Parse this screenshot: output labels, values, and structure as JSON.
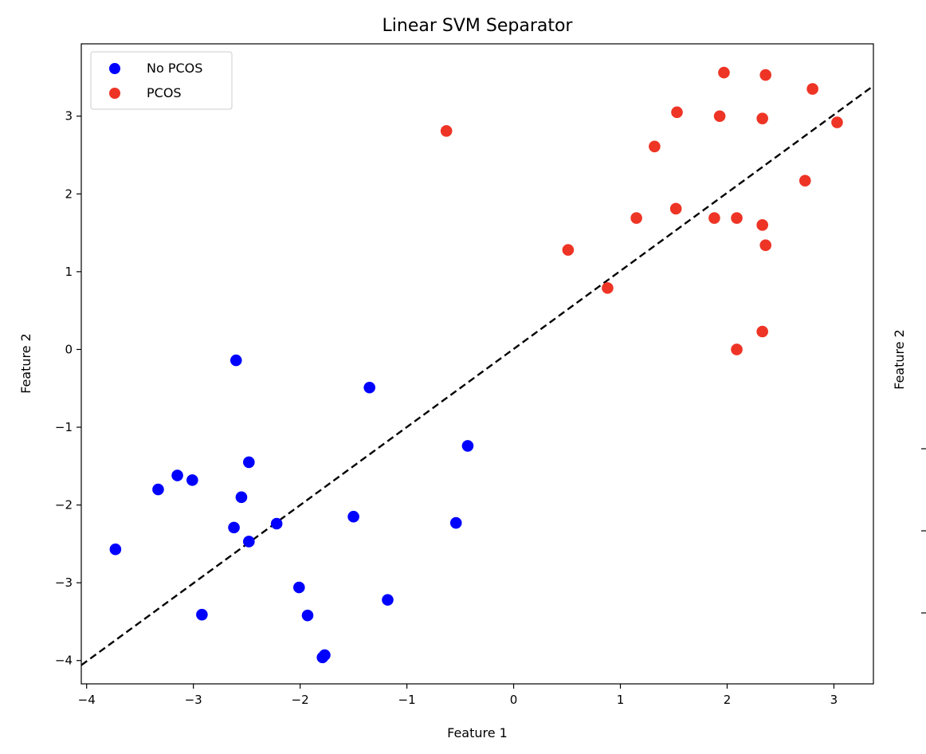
{
  "chart_data": {
    "type": "scatter",
    "title": "Linear SVM Separator",
    "xlabel": "Feature 1",
    "ylabel": "Feature 2",
    "xlim": [
      -4.05,
      3.37
    ],
    "ylim": [
      -4.3,
      3.93
    ],
    "x_ticks": [
      {
        "value": -4,
        "label": "−4"
      },
      {
        "value": -3,
        "label": "−3"
      },
      {
        "value": -2,
        "label": "−2"
      },
      {
        "value": -1,
        "label": "−1"
      },
      {
        "value": 0,
        "label": "0"
      },
      {
        "value": 1,
        "label": "1"
      },
      {
        "value": 2,
        "label": "2"
      },
      {
        "value": 3,
        "label": "3"
      }
    ],
    "y_ticks": [
      {
        "value": -4,
        "label": "−4"
      },
      {
        "value": -3,
        "label": "−3"
      },
      {
        "value": -2,
        "label": "−2"
      },
      {
        "value": -1,
        "label": "−1"
      },
      {
        "value": 0,
        "label": "0"
      },
      {
        "value": 1,
        "label": "1"
      },
      {
        "value": 2,
        "label": "2"
      },
      {
        "value": 3,
        "label": "3"
      }
    ],
    "grid": false,
    "legend_position": "top-left",
    "series": [
      {
        "name": "No PCOS",
        "color": "#0000ff",
        "points": [
          [
            -2.6,
            -0.14
          ],
          [
            -1.35,
            -0.49
          ],
          [
            -0.43,
            -1.24
          ],
          [
            -2.48,
            -1.45
          ],
          [
            -3.15,
            -1.62
          ],
          [
            -3.01,
            -1.68
          ],
          [
            -3.33,
            -1.8
          ],
          [
            -2.55,
            -1.9
          ],
          [
            -1.5,
            -2.15
          ],
          [
            -2.22,
            -2.24
          ],
          [
            -0.54,
            -2.23
          ],
          [
            -2.62,
            -2.29
          ],
          [
            -2.48,
            -2.47
          ],
          [
            -3.73,
            -2.57
          ],
          [
            -2.01,
            -3.06
          ],
          [
            -1.18,
            -3.22
          ],
          [
            -2.92,
            -3.41
          ],
          [
            -1.93,
            -3.42
          ],
          [
            -1.77,
            -3.93
          ],
          [
            -1.79,
            -3.96
          ]
        ]
      },
      {
        "name": "PCOS",
        "color": "#ee3425",
        "points": [
          [
            1.97,
            3.56
          ],
          [
            2.36,
            3.53
          ],
          [
            2.8,
            3.35
          ],
          [
            1.53,
            3.05
          ],
          [
            1.93,
            3.0
          ],
          [
            2.33,
            2.97
          ],
          [
            3.03,
            2.92
          ],
          [
            -0.63,
            2.81
          ],
          [
            1.32,
            2.61
          ],
          [
            2.73,
            2.17
          ],
          [
            1.52,
            1.81
          ],
          [
            1.15,
            1.69
          ],
          [
            1.88,
            1.69
          ],
          [
            2.09,
            1.69
          ],
          [
            2.33,
            1.6
          ],
          [
            2.36,
            1.34
          ],
          [
            0.51,
            1.28
          ],
          [
            0.88,
            0.79
          ],
          [
            2.33,
            0.23
          ],
          [
            2.09,
            0.0
          ]
        ]
      }
    ],
    "separator": {
      "style": "dashed",
      "color": "#000000",
      "points": [
        [
          -4.05,
          -4.06
        ],
        [
          3.37,
          3.39
        ]
      ]
    }
  },
  "side_panel": {
    "ylabel": "Feature 2",
    "tick_label_count": 3
  }
}
